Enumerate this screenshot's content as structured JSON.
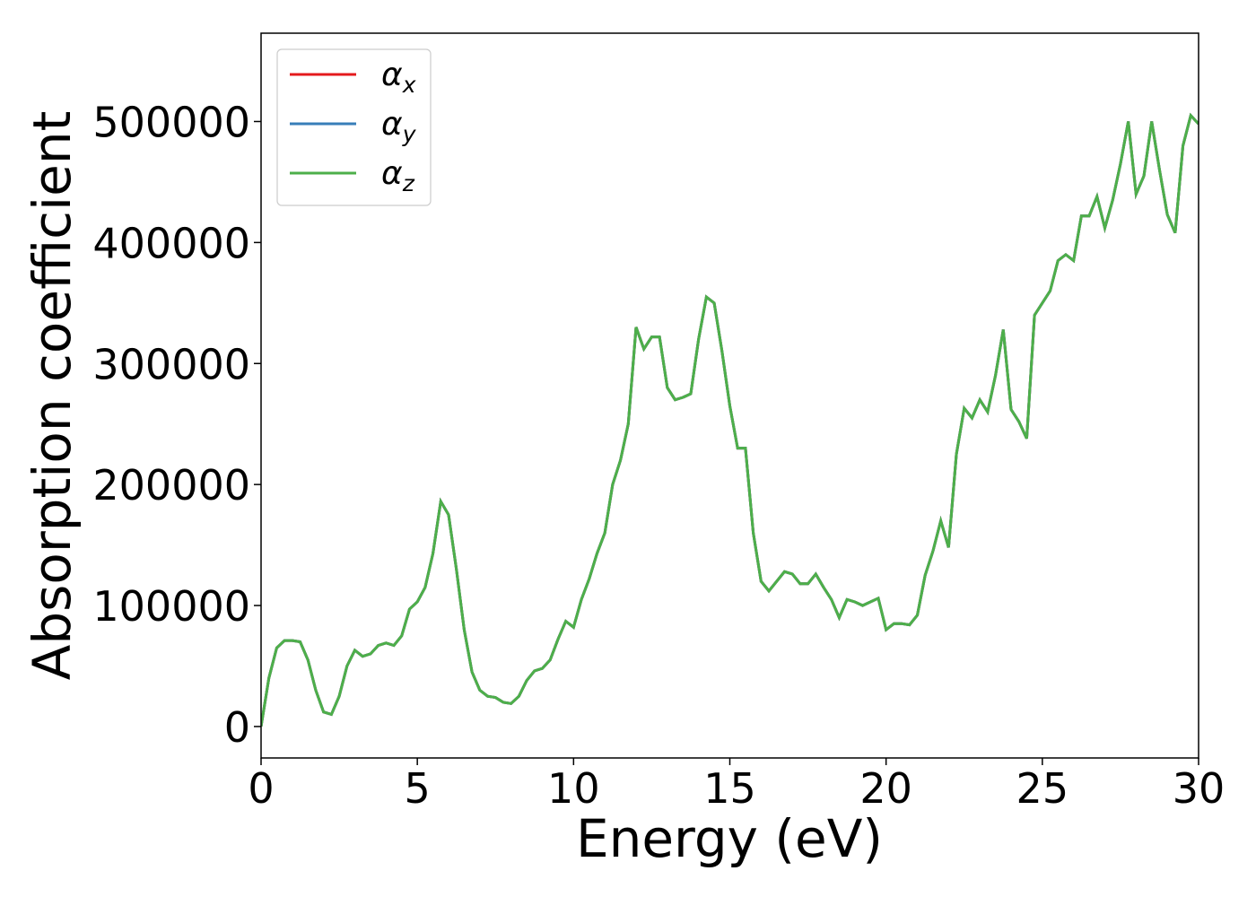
{
  "chart_data": {
    "type": "line",
    "xlabel": "Energy (eV)",
    "ylabel": "Absorption coefficient",
    "x": [
      0,
      0.25,
      0.5,
      0.75,
      1,
      1.25,
      1.5,
      1.75,
      2,
      2.25,
      2.5,
      2.75,
      3,
      3.25,
      3.5,
      3.75,
      4,
      4.25,
      4.5,
      4.75,
      5,
      5.25,
      5.5,
      5.75,
      6,
      6.25,
      6.5,
      6.75,
      7,
      7.25,
      7.5,
      7.75,
      8,
      8.25,
      8.5,
      8.75,
      9,
      9.25,
      9.5,
      9.75,
      10,
      10.25,
      10.5,
      10.75,
      11,
      11.25,
      11.5,
      11.75,
      12,
      12.25,
      12.5,
      12.75,
      13,
      13.25,
      13.5,
      13.75,
      14,
      14.25,
      14.5,
      14.75,
      15,
      15.25,
      15.5,
      15.75,
      16,
      16.25,
      16.5,
      16.75,
      17,
      17.25,
      17.5,
      17.75,
      18,
      18.25,
      18.5,
      18.75,
      19,
      19.25,
      19.5,
      19.75,
      20,
      20.25,
      20.5,
      20.75,
      21,
      21.25,
      21.5,
      21.75,
      22,
      22.25,
      22.5,
      22.75,
      23,
      23.25,
      23.5,
      23.75,
      24,
      24.25,
      24.5,
      24.75,
      25,
      25.25,
      25.5,
      25.75,
      26,
      26.25,
      26.5,
      26.75,
      27,
      27.25,
      27.5,
      27.75,
      28,
      28.25,
      28.5,
      28.75,
      29,
      29.25,
      29.5,
      29.75,
      30
    ],
    "series": [
      {
        "name": "αx",
        "color": "#e41a1c",
        "values": [
          0,
          40000,
          65000,
          71000,
          71000,
          70000,
          55000,
          30000,
          12000,
          10000,
          25000,
          50000,
          63000,
          58000,
          60000,
          67000,
          69000,
          67000,
          75000,
          97000,
          103000,
          115000,
          143000,
          186000,
          175000,
          130000,
          80000,
          45000,
          30000,
          25000,
          24000,
          20000,
          19000,
          25000,
          38000,
          46000,
          48000,
          55000,
          72000,
          87000,
          82000,
          105000,
          122000,
          143000,
          160000,
          200000,
          220000,
          250000,
          330000,
          312000,
          322000,
          322000,
          280000,
          270000,
          272000,
          275000,
          320000,
          355000,
          350000,
          310000,
          265000,
          230000,
          230000,
          160000,
          120000,
          112000,
          120000,
          128000,
          126000,
          118000,
          118000,
          126000,
          115000,
          105000,
          90000,
          105000,
          103000,
          100000,
          103000,
          106000,
          80000,
          85000,
          85000,
          84000,
          92000,
          125000,
          145000,
          170000,
          148000,
          225000,
          263000,
          255000,
          270000,
          260000,
          290000,
          328000,
          262000,
          252000,
          238000,
          340000,
          350000,
          360000,
          385000,
          390000,
          385000,
          422000,
          422000,
          438000,
          412000,
          435000,
          465000,
          500000,
          440000,
          455000,
          500000,
          460000,
          423000,
          408000,
          480000,
          505000,
          498000
        ]
      },
      {
        "name": "αy",
        "color": "#377eb8",
        "values": [
          0,
          40000,
          65000,
          71000,
          71000,
          70000,
          55000,
          30000,
          12000,
          10000,
          25000,
          50000,
          63000,
          58000,
          60000,
          67000,
          69000,
          67000,
          75000,
          97000,
          103000,
          115000,
          143000,
          186000,
          175000,
          130000,
          80000,
          45000,
          30000,
          25000,
          24000,
          20000,
          19000,
          25000,
          38000,
          46000,
          48000,
          55000,
          72000,
          87000,
          82000,
          105000,
          122000,
          143000,
          160000,
          200000,
          220000,
          250000,
          330000,
          312000,
          322000,
          322000,
          280000,
          270000,
          272000,
          275000,
          320000,
          355000,
          350000,
          310000,
          265000,
          230000,
          230000,
          160000,
          120000,
          112000,
          120000,
          128000,
          126000,
          118000,
          118000,
          126000,
          115000,
          105000,
          90000,
          105000,
          103000,
          100000,
          103000,
          106000,
          80000,
          85000,
          85000,
          84000,
          92000,
          125000,
          145000,
          170000,
          148000,
          225000,
          263000,
          255000,
          270000,
          260000,
          290000,
          328000,
          262000,
          252000,
          238000,
          340000,
          350000,
          360000,
          385000,
          390000,
          385000,
          422000,
          422000,
          438000,
          412000,
          435000,
          465000,
          500000,
          440000,
          455000,
          500000,
          460000,
          423000,
          408000,
          480000,
          505000,
          498000
        ]
      },
      {
        "name": "αz",
        "color": "#4daf4a",
        "values": [
          0,
          40000,
          65000,
          71000,
          71000,
          70000,
          55000,
          30000,
          12000,
          10000,
          25000,
          50000,
          63000,
          58000,
          60000,
          67000,
          69000,
          67000,
          75000,
          97000,
          103000,
          115000,
          143000,
          186000,
          175000,
          130000,
          80000,
          45000,
          30000,
          25000,
          24000,
          20000,
          19000,
          25000,
          38000,
          46000,
          48000,
          55000,
          72000,
          87000,
          82000,
          105000,
          122000,
          143000,
          160000,
          200000,
          220000,
          250000,
          330000,
          312000,
          322000,
          322000,
          280000,
          270000,
          272000,
          275000,
          320000,
          355000,
          350000,
          310000,
          265000,
          230000,
          230000,
          160000,
          120000,
          112000,
          120000,
          128000,
          126000,
          118000,
          118000,
          126000,
          115000,
          105000,
          90000,
          105000,
          103000,
          100000,
          103000,
          106000,
          80000,
          85000,
          85000,
          84000,
          92000,
          125000,
          145000,
          170000,
          148000,
          225000,
          263000,
          255000,
          270000,
          260000,
          290000,
          328000,
          262000,
          252000,
          238000,
          340000,
          350000,
          360000,
          385000,
          390000,
          385000,
          422000,
          422000,
          438000,
          412000,
          435000,
          465000,
          500000,
          440000,
          455000,
          500000,
          460000,
          423000,
          408000,
          480000,
          505000,
          498000
        ]
      }
    ],
    "xlim": [
      0,
      30
    ],
    "xticks": [
      0,
      5,
      10,
      15,
      20,
      25,
      30
    ],
    "ylim": [
      -26000,
      573000
    ],
    "yticks": [
      0,
      100000,
      200000,
      300000,
      400000,
      500000
    ],
    "grid": false,
    "legend": "upper left"
  }
}
